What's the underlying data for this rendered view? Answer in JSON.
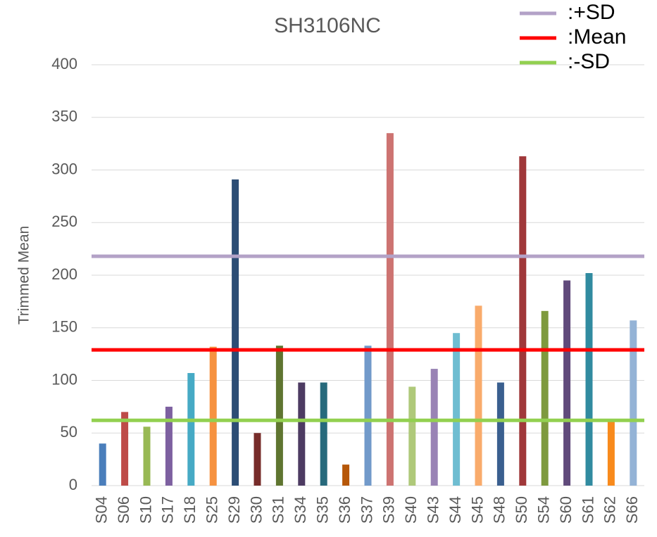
{
  "chart_data": {
    "type": "bar",
    "title": "SH3106NC",
    "y_label": "Trimmed Mean",
    "categories": [
      "S04",
      "S06",
      "S10",
      "S17",
      "S18",
      "S25",
      "S29",
      "S30",
      "S31",
      "S34",
      "S35",
      "S36",
      "S37",
      "S39",
      "S40",
      "S43",
      "S44",
      "S45",
      "S48",
      "S50",
      "S54",
      "S60",
      "S61",
      "S62",
      "S66"
    ],
    "values": [
      40,
      70,
      56,
      75,
      107,
      132,
      291,
      50,
      133,
      98,
      98,
      20,
      133,
      335,
      94,
      111,
      145,
      171,
      98,
      313,
      166,
      195,
      202,
      62,
      157
    ],
    "colors": [
      "#4a7ebb",
      "#be4b48",
      "#98b954",
      "#7d60a0",
      "#46aac5",
      "#f69240",
      "#2c4d75",
      "#772c2a",
      "#5f7530",
      "#4d3b62",
      "#276a7c",
      "#b65708",
      "#729aca",
      "#cd7371",
      "#afc97a",
      "#9983b5",
      "#6fbdd1",
      "#f9ab6b",
      "#3a5f8f",
      "#a0383a",
      "#7e9a3e",
      "#604a7b",
      "#318ba0",
      "#f88a1c",
      "#94b3d6"
    ],
    "reference_lines": [
      {
        "name": ":+SD",
        "color": "#b3a2c7",
        "value": 218
      },
      {
        "name": ":Mean",
        "color": "#ff0000",
        "value": 129
      },
      {
        "name": ":-SD",
        "color": "#92d050",
        "value": 62
      }
    ],
    "ylim": [
      0,
      400
    ],
    "yticks": [
      0,
      50,
      100,
      150,
      200,
      250,
      300,
      350,
      400
    ],
    "grid": true,
    "legend": "top-right"
  }
}
